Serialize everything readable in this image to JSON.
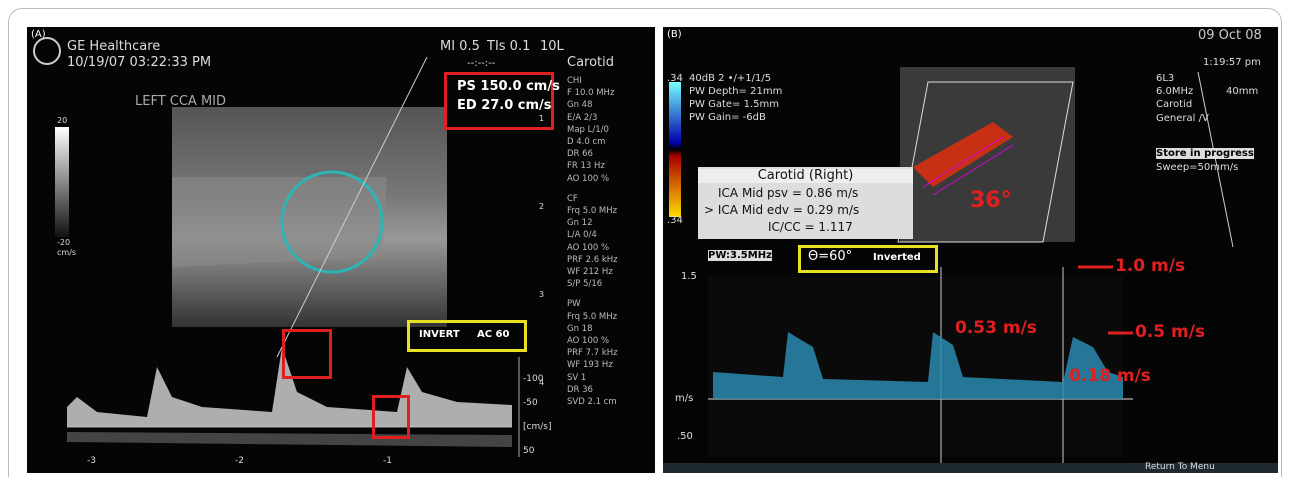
{
  "panel_a": {
    "label": "(A)",
    "vendor": "GE Healthcare",
    "datetime": "10/19/07 03:22:33 PM",
    "mi": "MI 0.5",
    "tis": "TIs 0.1",
    "probe": "10L",
    "dashes": "--:--:--",
    "preset": "Carotid",
    "site": "LEFT CCA MID",
    "measure": [
      "PS 150.0 cm/s",
      "ED 27.0 cm/s"
    ],
    "invert": "INVERT",
    "angle": "AC 60",
    "colorbar": [
      "20",
      "-20",
      "cm/s"
    ],
    "settings": [
      "CHI",
      "F 10.0 MHz",
      "Gn 48",
      "E/A 2/3",
      "Map L/1/0",
      "D 4.0 cm",
      "DR 66",
      "FR 13 Hz",
      "AO 100 %",
      "CF",
      "Frq 5.0 MHz",
      "Gn 12",
      "L/A 0/4",
      "AO 100 %",
      "PRF 2.6 kHz",
      "WF 212 Hz",
      "S/P 5/16",
      "PW",
      "Frq 5.0 MHz",
      "Gn 18",
      "AO 100 %",
      "PRF 7.7 kHz",
      "WF 193 Hz",
      "SV 1",
      "DR 36",
      "SVD 2.1 cm"
    ],
    "depth_marks": [
      "1",
      "2",
      "3",
      "4"
    ],
    "velocity_ticks": [
      "-100",
      "-50",
      "[cm/s]",
      "50"
    ],
    "time_ticks": [
      "-3",
      "-2",
      "-1"
    ]
  },
  "panel_b": {
    "label": "(B)",
    "date": "09 Oct 08",
    "time": "1:19:57 pm",
    "scale_top": ".34",
    "scale_bottom": ".34",
    "params": [
      "40dB 2 •/+1/1/5",
      "PW Depth= 21mm",
      "PW Gate= 1.5mm",
      "PW Gain= -6dB"
    ],
    "probe": [
      "6L3",
      "6.0MHz",
      "40mm",
      "Carotid",
      "General /V"
    ],
    "store": "Store in progress",
    "sweep": "Sweep=50mm/s",
    "report": {
      "title": "Carotid (Right)",
      "rows": [
        "ICA Mid psv = 0.86 m/s",
        "> ICA Mid edv = 0.29 m/s",
        "IC/CC = 1.117"
      ]
    },
    "angle_mark": "36°",
    "pw": "PW:3.5MHz",
    "theta": "Θ=60°",
    "inverted": "Inverted",
    "annotations": [
      "1.0 m/s",
      "0.53 m/s",
      "0.5 m/s",
      "0.18 m/s"
    ],
    "axis": [
      "1.5",
      "m/s",
      ".50"
    ],
    "menu": "Return To Menu"
  }
}
